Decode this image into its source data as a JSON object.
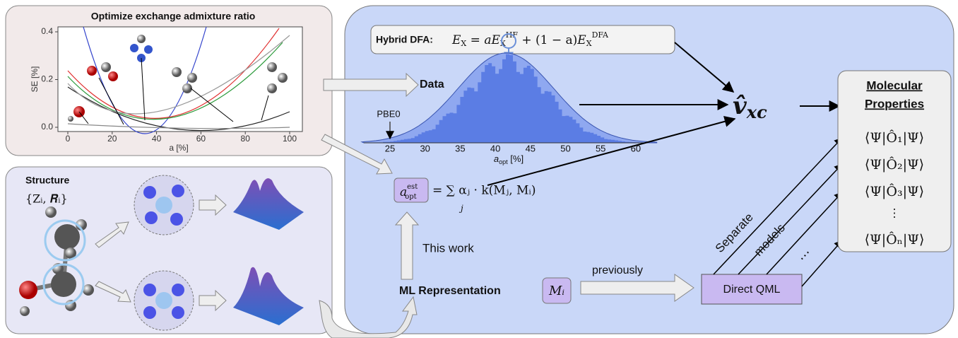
{
  "optimize_panel": {
    "title": "Optimize exchange admixture ratio",
    "y_axis_label": "SE [%]",
    "x_axis_label": "a [%]",
    "x_ticks": [
      "0",
      "20",
      "40",
      "60",
      "80",
      "100"
    ],
    "y_ticks": [
      "0.0",
      "0.2",
      "0.4"
    ]
  },
  "structure_panel": {
    "title": "Structure",
    "symbol": "{Zᵢ, 𝑹ᵢ}"
  },
  "hybrid_dfa": {
    "label": "Hybrid DFA:",
    "parts": [
      "E",
      "X",
      " = ",
      "a",
      "E",
      "X",
      "HF",
      " + (1 − a)",
      "E",
      "X",
      "DFA"
    ]
  },
  "histogram": {
    "data_label": "Data",
    "marker_label": "PBE0",
    "x_ticks": [
      "25",
      "30",
      "35",
      "40",
      "45",
      "50",
      "55",
      "60"
    ],
    "x_axis_label": "a",
    "x_axis_sub": "opt",
    "x_axis_unit": " [%]"
  },
  "kernel": {
    "lhs": "a",
    "lhs_sup": "est",
    "lhs_sub": "opt",
    "rhs": "= ∑ αⱼ · k(Mⱼ, Mᵢ)",
    "sum_index": "j"
  },
  "this_work": "This work",
  "ml_representation": {
    "label": "ML Representation",
    "symbol": "Mᵢ"
  },
  "previously": "previously",
  "direct_qml": "Direct QML",
  "separate": "Separate",
  "models": "models",
  "model_dots": "⋯",
  "vxc": "v̂",
  "vxc_sub": "xc",
  "molecular_properties": {
    "title_line1": "Molecular",
    "title_line2": "Properties",
    "items": [
      "⟨Ψ|Ô₁|Ψ⟩",
      "⟨Ψ|Ô₂|Ψ⟩",
      "⟨Ψ|Ô₃|Ψ⟩",
      "⟨Ψ|Ôₙ|Ψ⟩"
    ],
    "ellipsis": "⋮"
  }
}
